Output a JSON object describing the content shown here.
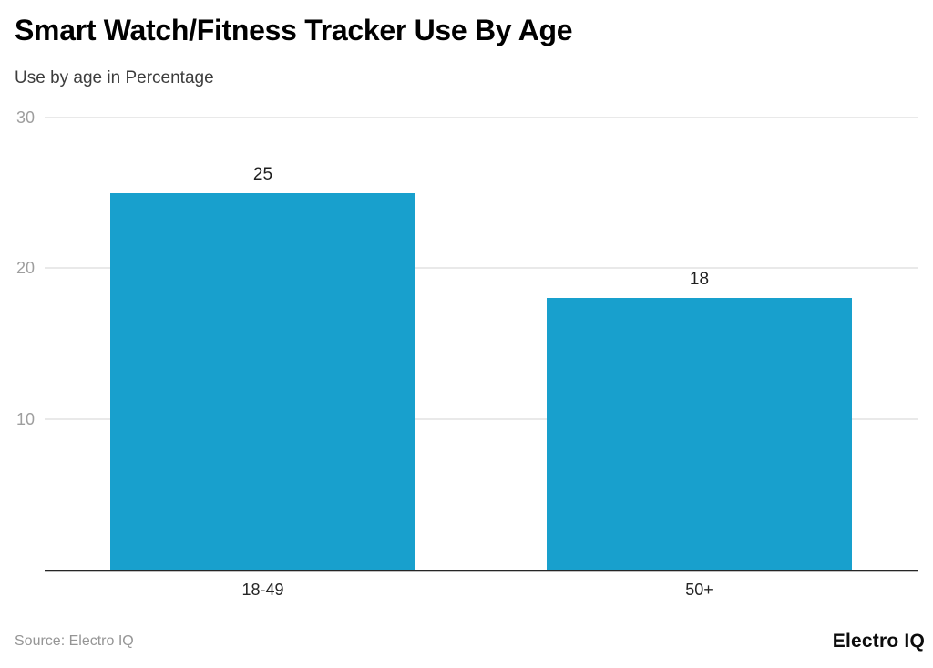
{
  "chart_data": {
    "type": "bar",
    "title": "Smart Watch/Fitness Tracker Use By Age",
    "subtitle": "Use by age in Percentage",
    "categories": [
      "18-49",
      "50+"
    ],
    "values": [
      25,
      18
    ],
    "xlabel": "",
    "ylabel": "",
    "ylim": [
      0,
      30
    ],
    "yticks": [
      10,
      20,
      30
    ],
    "grid": true,
    "legend": "none",
    "bar_width_fraction": 0.7,
    "colors": {
      "bar": "#18A0CD",
      "gridline": "#e9e9e9",
      "axis_line": "#262626",
      "tick_label": "#9e9e9e",
      "value_label": "#1f1f1f",
      "category_label": "#262626"
    }
  },
  "footer": {
    "source": "Source: Electro IQ",
    "logo": "Electro IQ"
  }
}
